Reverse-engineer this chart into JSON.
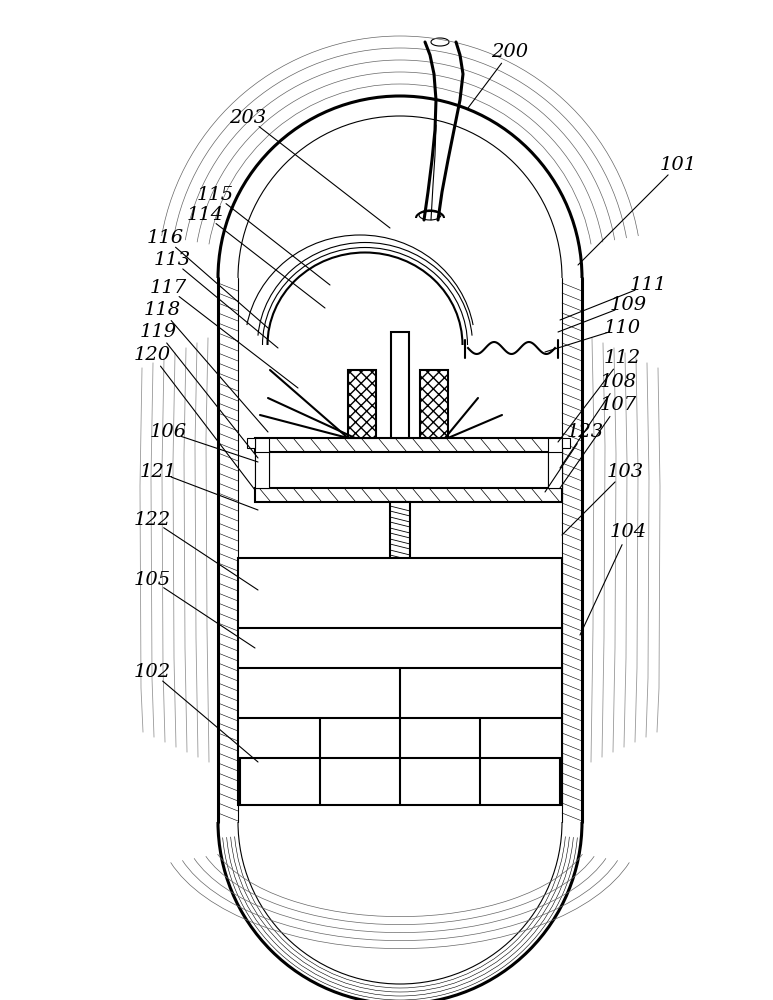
{
  "bg_color": "#ffffff",
  "line_color": "#000000",
  "lw_main": 1.5,
  "lw_thin": 0.8,
  "lw_thick": 2.2,
  "lw_hatch": 0.5,
  "label_fontsize": 14,
  "labels": [
    [
      "200",
      510,
      52,
      468,
      108
    ],
    [
      "203",
      248,
      118,
      390,
      228
    ],
    [
      "101",
      678,
      165,
      578,
      265
    ],
    [
      "115",
      215,
      195,
      330,
      285
    ],
    [
      "114",
      205,
      215,
      325,
      308
    ],
    [
      "116",
      165,
      238,
      268,
      328
    ],
    [
      "113",
      172,
      260,
      278,
      348
    ],
    [
      "117",
      168,
      288,
      298,
      388
    ],
    [
      "118",
      162,
      310,
      268,
      432
    ],
    [
      "119",
      158,
      332,
      258,
      458
    ],
    [
      "120",
      152,
      355,
      255,
      490
    ],
    [
      "111",
      648,
      285,
      560,
      320
    ],
    [
      "109",
      628,
      305,
      558,
      332
    ],
    [
      "110",
      622,
      328,
      545,
      352
    ],
    [
      "112",
      622,
      358,
      558,
      442
    ],
    [
      "108",
      618,
      382,
      560,
      468
    ],
    [
      "107",
      618,
      405,
      560,
      488
    ],
    [
      "106",
      168,
      432,
      258,
      462
    ],
    [
      "121",
      158,
      472,
      258,
      510
    ],
    [
      "122",
      152,
      520,
      258,
      590
    ],
    [
      "105",
      152,
      580,
      255,
      648
    ],
    [
      "103",
      625,
      472,
      562,
      535
    ],
    [
      "104",
      628,
      532,
      580,
      635
    ],
    [
      "123",
      585,
      432,
      545,
      492
    ],
    [
      "102",
      152,
      672,
      258,
      762
    ]
  ]
}
